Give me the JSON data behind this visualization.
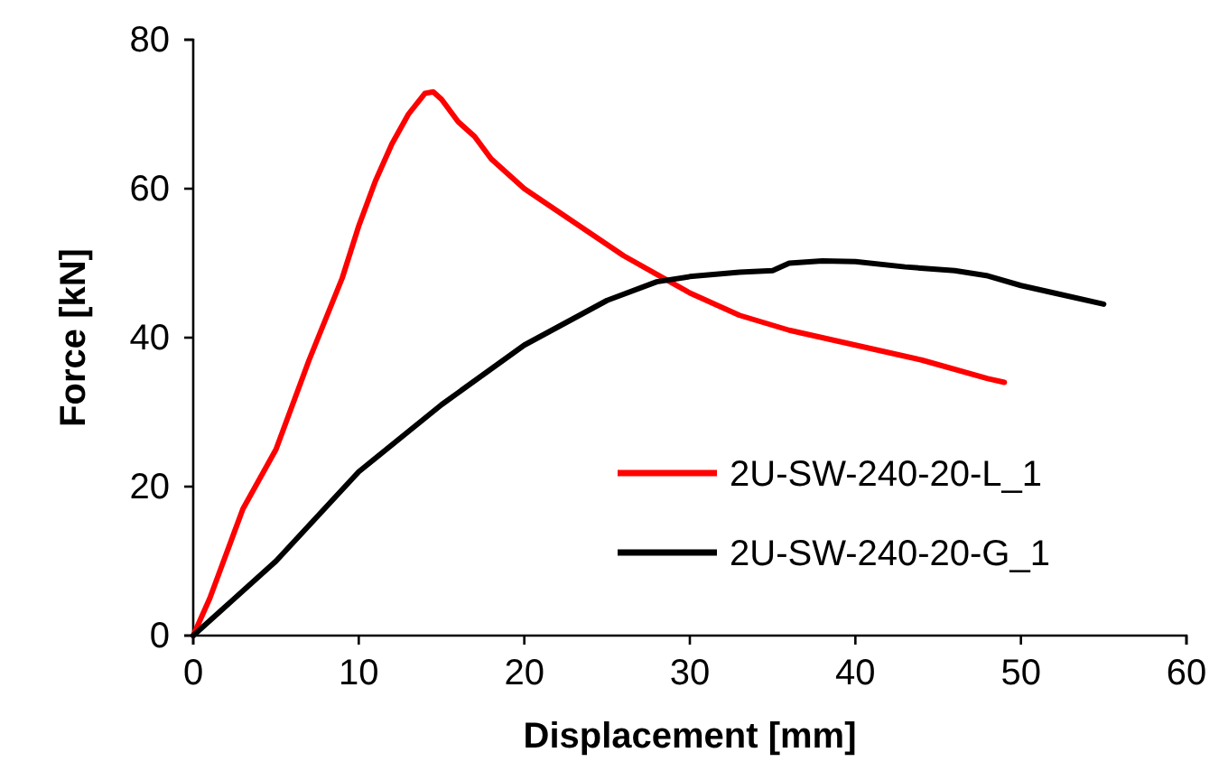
{
  "chart_data": {
    "type": "line",
    "xlabel": "Displacement [mm]",
    "ylabel": "Force [kN]",
    "xlim": [
      0,
      60
    ],
    "ylim": [
      0,
      80
    ],
    "xticks": [
      0,
      10,
      20,
      30,
      40,
      50,
      60
    ],
    "yticks": [
      0,
      20,
      40,
      60,
      80
    ],
    "grid": false,
    "legend": "bottom right",
    "marker": "none",
    "line_style": "solid",
    "series": [
      {
        "name": "2U-SW-240-20-L_1",
        "color": "#ff0000",
        "x": [
          0,
          1,
          2,
          3,
          5,
          7,
          9,
          10,
          11,
          12,
          13,
          14,
          14.5,
          15,
          16,
          17,
          18,
          19,
          20,
          22,
          24,
          26,
          28,
          30,
          33,
          36,
          40,
          44,
          48,
          49
        ],
        "values": [
          0,
          5,
          11,
          17,
          25,
          37,
          48,
          55,
          61,
          66,
          70,
          72.8,
          73,
          72,
          69,
          67,
          64,
          62,
          60,
          57,
          54,
          51,
          48.5,
          46,
          43,
          41,
          39,
          37,
          34.5,
          34
        ]
      },
      {
        "name": "2U-SW-240-20-G_1",
        "color": "#000000",
        "x": [
          0,
          2,
          5,
          10,
          15,
          20,
          25,
          28,
          30,
          33,
          35,
          36,
          38,
          40,
          43,
          46,
          48,
          50,
          52,
          55
        ],
        "values": [
          0,
          4,
          10,
          22,
          31,
          39,
          45,
          47.5,
          48.2,
          48.8,
          49,
          50,
          50.3,
          50.2,
          49.5,
          49,
          48.3,
          47,
          46,
          44.5
        ]
      }
    ]
  }
}
